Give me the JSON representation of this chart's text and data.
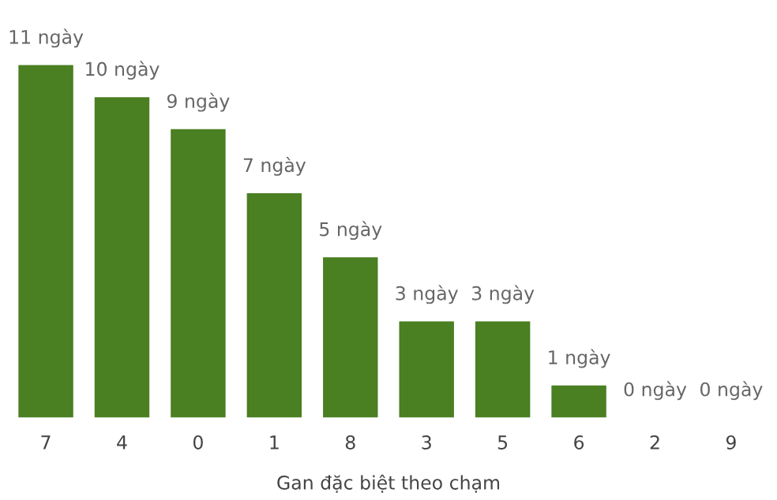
{
  "chart_data": {
    "type": "bar",
    "xlabel": "Gan đặc biệt theo chạm",
    "categories": [
      "7",
      "4",
      "0",
      "1",
      "8",
      "3",
      "5",
      "6",
      "2",
      "9"
    ],
    "values": [
      11,
      10,
      9,
      7,
      5,
      3,
      3,
      1,
      0,
      0
    ],
    "value_labels": [
      "11 ngày",
      "10 ngày",
      "9 ngày",
      "7 ngày",
      "5 ngày",
      "3 ngày",
      "3 ngày",
      "1 ngày",
      "0 ngày",
      "0 ngày"
    ],
    "color": "#4a7f22",
    "grid": false,
    "legend": false
  }
}
